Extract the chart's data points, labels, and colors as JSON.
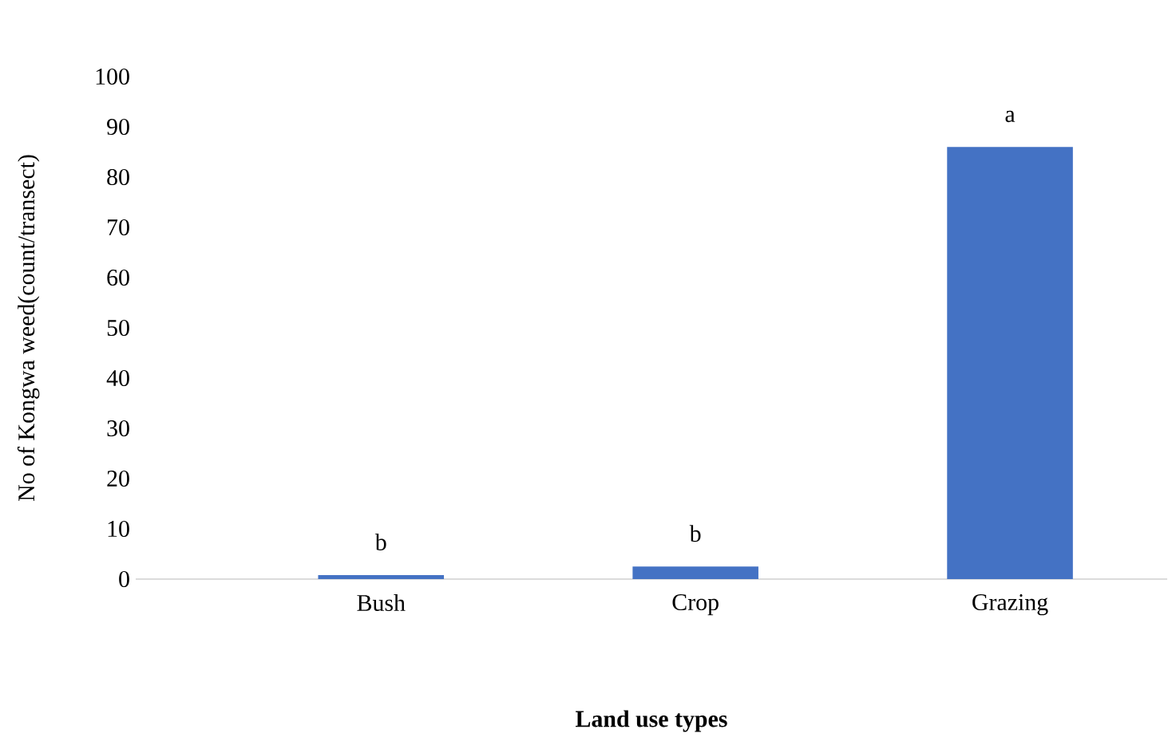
{
  "chart_data": {
    "type": "bar",
    "xlabel": "Land use types",
    "ylabel": "No of Kongwa weed(count/transect)",
    "categories": [
      "Bush",
      "Crop",
      "Grazing"
    ],
    "values": [
      0.8,
      2.5,
      86
    ],
    "color": "#4472c4",
    "ylim": [
      0,
      100
    ],
    "yticks": [
      0,
      10,
      20,
      30,
      40,
      50,
      60,
      70,
      80,
      90,
      100
    ],
    "grid": false,
    "annotations": [
      "b",
      "b",
      "a"
    ]
  }
}
